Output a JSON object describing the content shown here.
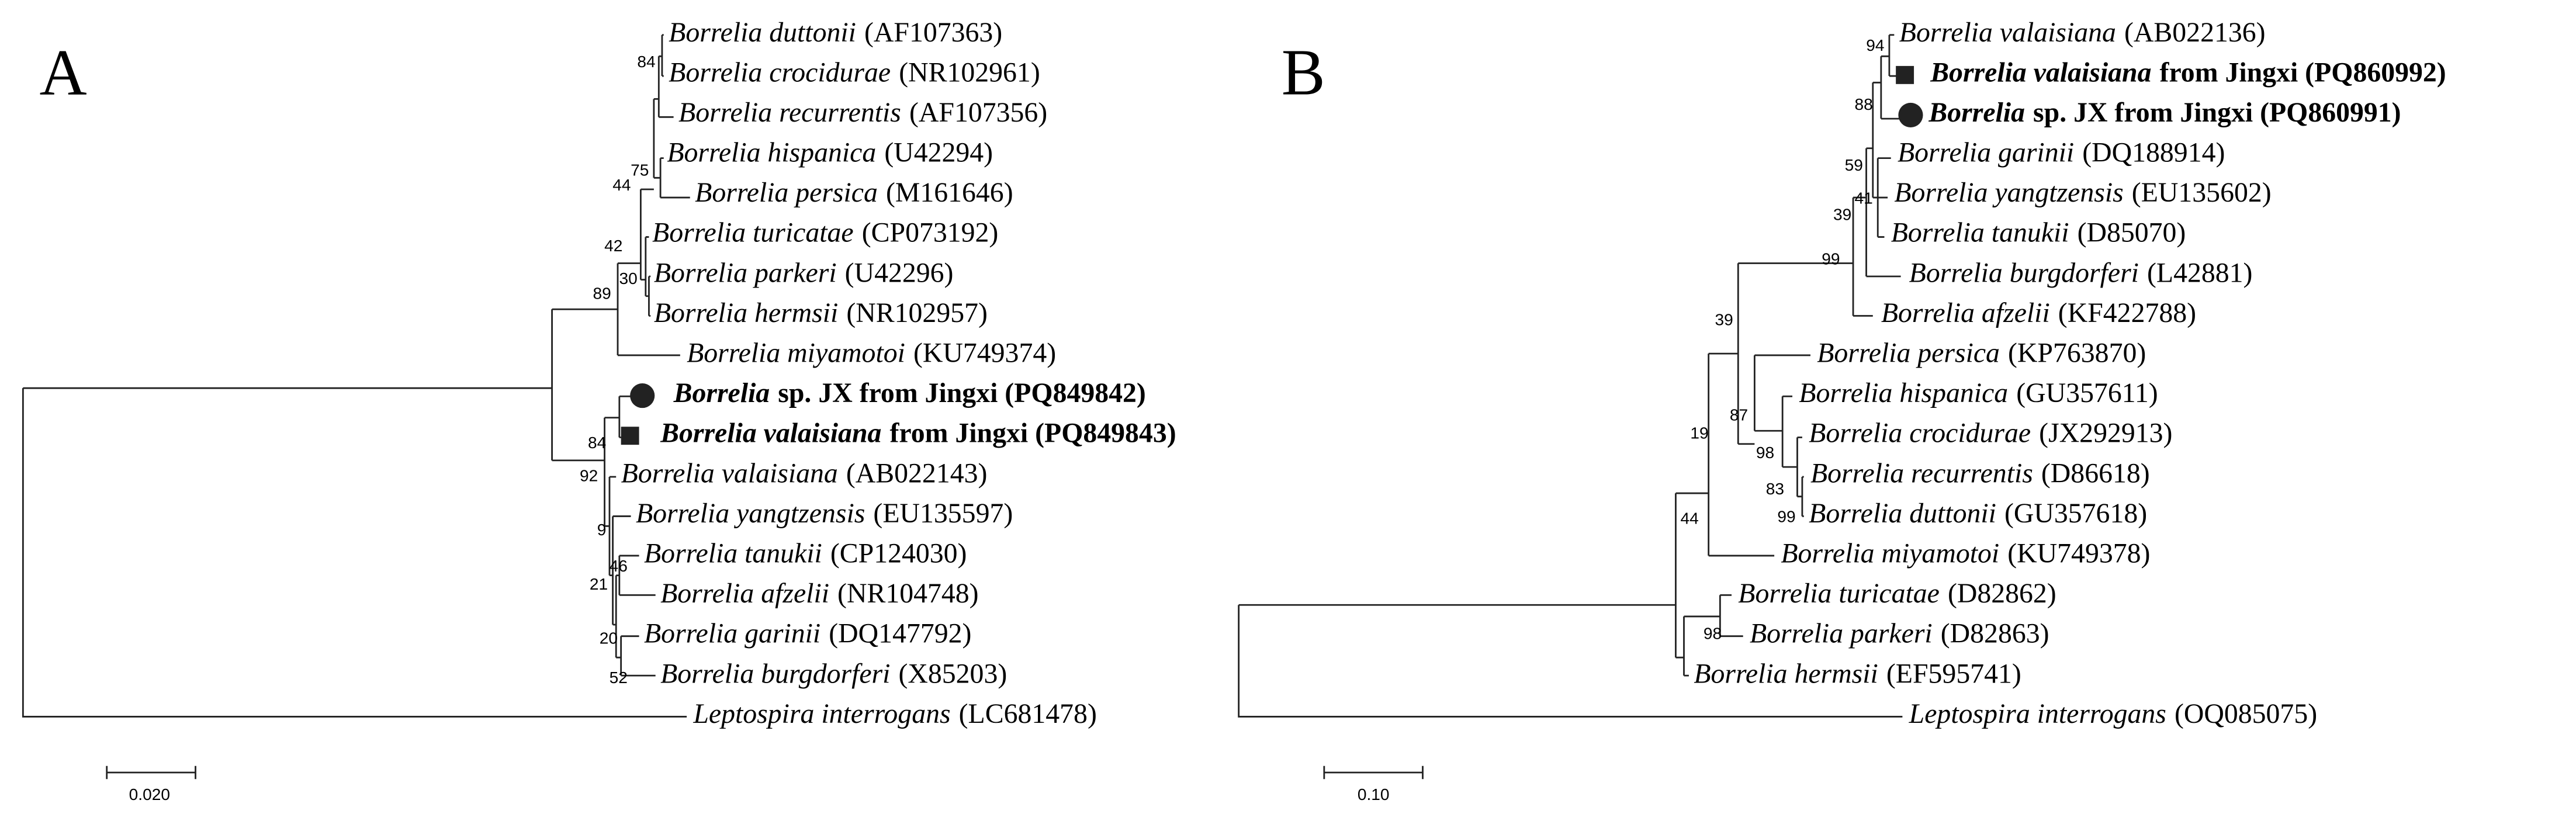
{
  "panels": [
    {
      "label": "A",
      "taxa": [
        {
          "name": "Borrelia duttonii",
          "rest": "(AF107363)"
        },
        {
          "name": "Borrelia crocidurae",
          "rest": "(NR102961)"
        },
        {
          "name": "Borrelia recurrentis",
          "rest": "(AF107356)"
        },
        {
          "name": "Borrelia hispanica",
          "rest": "(U42294)"
        },
        {
          "name": "Borrelia persica",
          "rest": "(M161646)"
        },
        {
          "name": "Borrelia turicatae",
          "rest": "(CP073192)"
        },
        {
          "name": "Borrelia parkeri",
          "rest": "(U42296)"
        },
        {
          "name": "Borrelia hermsii",
          "rest": "(NR102957)"
        },
        {
          "name": "Borrelia miyamotoi",
          "rest": "(KU749374)"
        },
        {
          "name": "Borrelia",
          "rest": "sp. JX from Jingxi (PQ849842)",
          "marker": "circle"
        },
        {
          "name": "Borrelia valaisiana",
          "rest": "from Jingxi (PQ849843)",
          "marker": "square"
        },
        {
          "name": "Borrelia valaisiana",
          "rest": "(AB022143)"
        },
        {
          "name": "Borrelia yangtzensis",
          "rest": "(EU135597)"
        },
        {
          "name": "Borrelia tanukii",
          "rest": "(CP124030)"
        },
        {
          "name": "Borrelia afzelii",
          "rest": "(NR104748)"
        },
        {
          "name": "Borrelia garinii",
          "rest": "(DQ147792)"
        },
        {
          "name": "Borrelia burgdorferi",
          "rest": "(X85203)"
        },
        {
          "name": "Leptospira interrogans",
          "rest": "(LC681478)"
        }
      ],
      "bootstrap": [
        84,
        75,
        44,
        42,
        30,
        89,
        84,
        92,
        9,
        46,
        21,
        20,
        52
      ],
      "scale": "0.020"
    },
    {
      "label": "B",
      "taxa": [
        {
          "name": "Borrelia valaisiana",
          "rest": "(AB022136)"
        },
        {
          "name": "Borrelia valaisiana",
          "rest": "from Jingxi (PQ860992)",
          "marker": "square"
        },
        {
          "name": "Borrelia",
          "rest": "sp. JX from Jingxi (PQ860991)",
          "marker": "circle"
        },
        {
          "name": "Borrelia garinii",
          "rest": "(DQ188914)"
        },
        {
          "name": "Borrelia yangtzensis",
          "rest": "(EU135602)"
        },
        {
          "name": "Borrelia tanukii",
          "rest": "(D85070)"
        },
        {
          "name": "Borrelia burgdorferi",
          "rest": "(L42881)"
        },
        {
          "name": "Borrelia afzelii",
          "rest": "(KF422788)"
        },
        {
          "name": "Borrelia persica",
          "rest": "(KP763870)"
        },
        {
          "name": "Borrelia hispanica",
          "rest": "(GU357611)"
        },
        {
          "name": "Borrelia crocidurae",
          "rest": "(JX292913)"
        },
        {
          "name": "Borrelia recurrentis",
          "rest": "(D86618)"
        },
        {
          "name": "Borrelia duttonii",
          "rest": "(GU357618)"
        },
        {
          "name": "Borrelia miyamotoi",
          "rest": "(KU749378)"
        },
        {
          "name": "Borrelia turicatae",
          "rest": "(D82862)"
        },
        {
          "name": "Borrelia parkeri",
          "rest": "(D82863)"
        },
        {
          "name": "Borrelia hermsii",
          "rest": "(EF595741)"
        },
        {
          "name": "Leptospira interrogans",
          "rest": "(OQ085075)"
        }
      ],
      "bootstrap": [
        94,
        88,
        59,
        41,
        39,
        99,
        39,
        87,
        98,
        83,
        99,
        19,
        44,
        98
      ],
      "scale": "0.10"
    }
  ]
}
